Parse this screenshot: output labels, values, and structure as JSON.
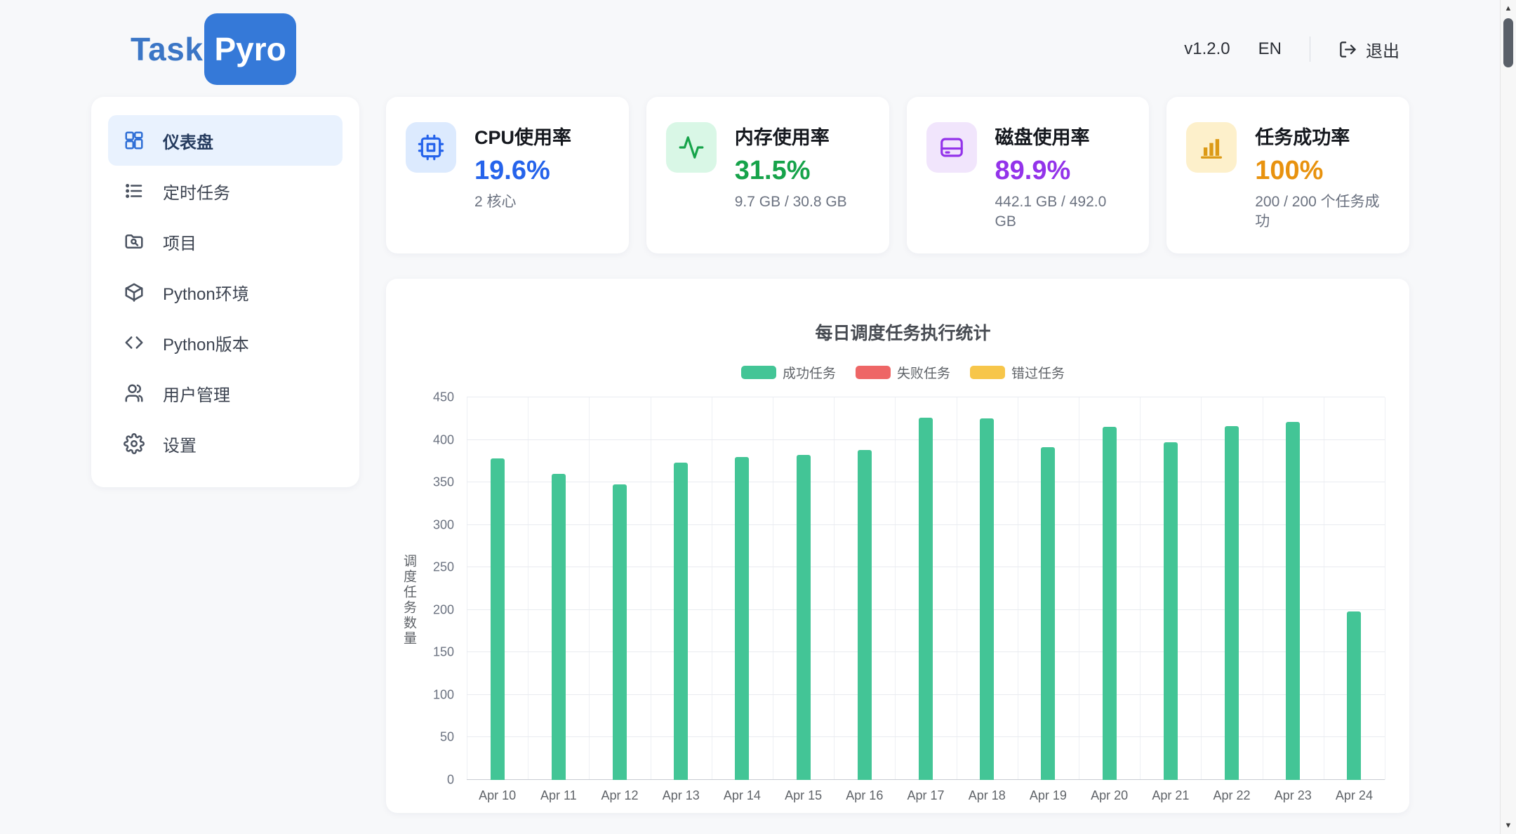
{
  "header": {
    "logo_task": "Task",
    "logo_pyro": "Pyro",
    "version": "v1.2.0",
    "lang": "EN",
    "logout_label": "退出"
  },
  "sidebar": {
    "items": [
      {
        "id": "dashboard",
        "label": "仪表盘",
        "icon": "dashboard-icon",
        "active": true
      },
      {
        "id": "scheduled-tasks",
        "label": "定时任务",
        "icon": "task-list-icon",
        "active": false
      },
      {
        "id": "projects",
        "label": "项目",
        "icon": "project-folder-icon",
        "active": false
      },
      {
        "id": "python-env",
        "label": "Python环境",
        "icon": "package-icon",
        "active": false
      },
      {
        "id": "python-version",
        "label": "Python版本",
        "icon": "code-icon",
        "active": false
      },
      {
        "id": "user-management",
        "label": "用户管理",
        "icon": "users-icon",
        "active": false
      },
      {
        "id": "settings",
        "label": "设置",
        "icon": "gear-icon",
        "active": false
      }
    ]
  },
  "stats": [
    {
      "id": "cpu",
      "title": "CPU使用率",
      "value": "19.6%",
      "subtitle": "2 核心",
      "accent": "#2563eb",
      "icon": "cpu-icon",
      "icon_bg": "#dceafe",
      "icon_color": "#2563eb"
    },
    {
      "id": "memory",
      "title": "内存使用率",
      "value": "31.5%",
      "subtitle": "9.7 GB / 30.8 GB",
      "accent": "#16a34a",
      "icon": "activity-icon",
      "icon_bg": "#d9f7e6",
      "icon_color": "#16a34a"
    },
    {
      "id": "disk",
      "title": "磁盘使用率",
      "value": "89.9%",
      "subtitle": "442.1 GB / 492.0 GB",
      "accent": "#9333ea",
      "icon": "disk-icon",
      "icon_bg": "#f1e5fc",
      "icon_color": "#9333ea"
    },
    {
      "id": "task-success",
      "title": "任务成功率",
      "value": "100%",
      "subtitle": "200 / 200 个任务成功",
      "accent": "#e8920e",
      "icon": "bar-chart-icon",
      "icon_bg": "#fdf0cb",
      "icon_color": "#dc9a16"
    }
  ],
  "chart_data": {
    "type": "bar",
    "title": "每日调度任务执行统计",
    "ylabel": "调度任务数量",
    "ylim": [
      0,
      450
    ],
    "ytick_step": 50,
    "grid": true,
    "legend_position": "top",
    "categories": [
      "Apr 10",
      "Apr 11",
      "Apr 12",
      "Apr 13",
      "Apr 14",
      "Apr 15",
      "Apr 16",
      "Apr 17",
      "Apr 18",
      "Apr 19",
      "Apr 20",
      "Apr 21",
      "Apr 22",
      "Apr 23",
      "Apr 24"
    ],
    "series": [
      {
        "name": "成功任务",
        "color": "#43c596",
        "values": [
          378,
          360,
          348,
          373,
          380,
          382,
          388,
          426,
          425,
          391,
          415,
          397,
          416,
          421,
          198
        ]
      },
      {
        "name": "失败任务",
        "color": "#ee6666",
        "values": [
          0,
          0,
          0,
          0,
          0,
          0,
          0,
          0,
          0,
          0,
          0,
          0,
          0,
          0,
          0
        ]
      },
      {
        "name": "错过任务",
        "color": "#f7c64a",
        "values": [
          0,
          0,
          0,
          0,
          0,
          0,
          0,
          0,
          0,
          0,
          0,
          0,
          0,
          0,
          0
        ]
      }
    ]
  },
  "scrollbar": {
    "up": "▲",
    "down": "▼"
  }
}
